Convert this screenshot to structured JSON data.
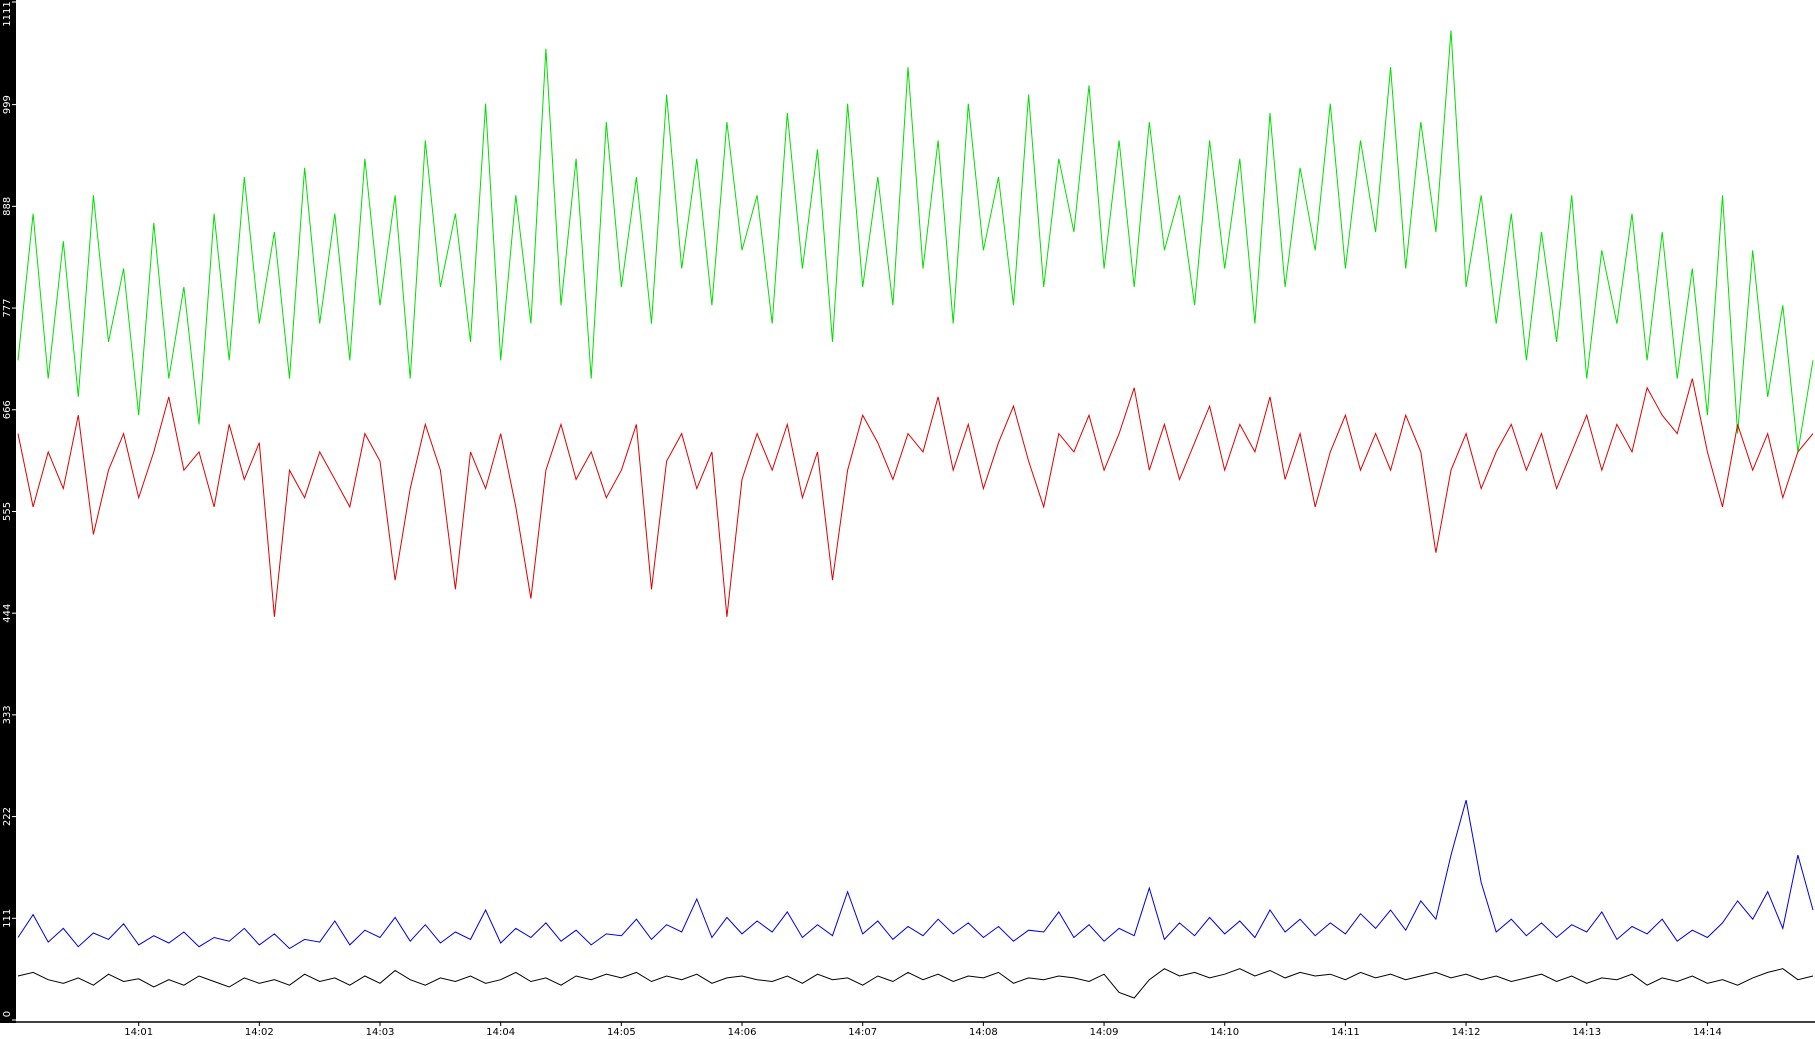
{
  "chart_data": {
    "type": "line",
    "categories": [
      null,
      null,
      null,
      null,
      null,
      null,
      null,
      null,
      "14:01",
      null,
      null,
      null,
      null,
      null,
      null,
      null,
      "14:02",
      null,
      null,
      null,
      null,
      null,
      null,
      null,
      "14:03",
      null,
      null,
      null,
      null,
      null,
      null,
      null,
      "14:04",
      null,
      null,
      null,
      null,
      null,
      null,
      null,
      "14:05",
      null,
      null,
      null,
      null,
      null,
      null,
      null,
      "14:06",
      null,
      null,
      null,
      null,
      null,
      null,
      null,
      "14:07",
      null,
      null,
      null,
      null,
      null,
      null,
      null,
      "14:08",
      null,
      null,
      null,
      null,
      null,
      null,
      null,
      "14:09",
      null,
      null,
      null,
      null,
      null,
      null,
      null,
      "14:10",
      null,
      null,
      null,
      null,
      null,
      null,
      null,
      "14:11",
      null,
      null,
      null,
      null,
      null,
      null,
      null,
      "14:12",
      null,
      null,
      null,
      null,
      null,
      null,
      null,
      "14:13",
      null,
      null,
      null,
      null,
      null,
      null,
      null,
      "14:14",
      null,
      null,
      null,
      null,
      null,
      null,
      null
    ],
    "series": [
      {
        "color": "#00e000",
        "values": [
          720,
          880,
          700,
          850,
          680,
          900,
          740,
          820,
          660,
          870,
          700,
          800,
          650,
          880,
          720,
          920,
          760,
          860,
          700,
          930,
          760,
          880,
          720,
          940,
          780,
          900,
          700,
          960,
          800,
          880,
          740,
          1000,
          720,
          900,
          760,
          1060,
          780,
          940,
          700,
          980,
          800,
          920,
          760,
          1010,
          820,
          940,
          780,
          980,
          840,
          900,
          760,
          990,
          820,
          950,
          740,
          1000,
          800,
          920,
          780,
          1040,
          820,
          960,
          760,
          1000,
          840,
          920,
          780,
          1010,
          800,
          940,
          860,
          1020,
          820,
          960,
          800,
          980,
          840,
          900,
          780,
          960,
          820,
          940,
          760,
          990,
          800,
          930,
          840,
          1000,
          820,
          960,
          860,
          1040,
          820,
          980,
          860,
          1080,
          800,
          900,
          760,
          880,
          720,
          860,
          740,
          900,
          700,
          840,
          760,
          880,
          720,
          860,
          700,
          820,
          660,
          900,
          640,
          840,
          680,
          780,
          620,
          720
        ]
      },
      {
        "color": "#e00000",
        "values": [
          640,
          560,
          620,
          580,
          660,
          530,
          600,
          640,
          570,
          620,
          680,
          600,
          620,
          560,
          650,
          590,
          630,
          440,
          600,
          570,
          620,
          590,
          560,
          640,
          610,
          480,
          580,
          650,
          600,
          470,
          620,
          580,
          640,
          560,
          460,
          600,
          650,
          590,
          620,
          570,
          600,
          650,
          470,
          610,
          640,
          580,
          620,
          440,
          590,
          640,
          600,
          650,
          570,
          620,
          480,
          600,
          660,
          630,
          590,
          640,
          620,
          680,
          600,
          650,
          580,
          630,
          670,
          610,
          560,
          640,
          620,
          660,
          600,
          640,
          690,
          600,
          650,
          590,
          630,
          670,
          600,
          650,
          620,
          680,
          590,
          640,
          560,
          620,
          660,
          600,
          640,
          600,
          660,
          620,
          510,
          600,
          640,
          580,
          620,
          650,
          600,
          640,
          580,
          620,
          660,
          600,
          650,
          620,
          690,
          660,
          640,
          700,
          620,
          560,
          650,
          600,
          640,
          570,
          620,
          640
        ]
      },
      {
        "color": "#0000e0",
        "values": [
          90,
          115,
          85,
          100,
          80,
          95,
          88,
          105,
          82,
          92,
          84,
          96,
          80,
          90,
          86,
          100,
          82,
          94,
          78,
          88,
          85,
          108,
          82,
          98,
          90,
          112,
          86,
          104,
          84,
          96,
          88,
          120,
          84,
          100,
          90,
          106,
          86,
          98,
          82,
          94,
          92,
          110,
          88,
          104,
          96,
          132,
          90,
          112,
          94,
          108,
          96,
          118,
          90,
          104,
          92,
          140,
          94,
          108,
          88,
          102,
          92,
          110,
          94,
          106,
          90,
          102,
          86,
          98,
          96,
          118,
          90,
          104,
          86,
          100,
          92,
          144,
          88,
          106,
          92,
          112,
          94,
          108,
          90,
          120,
          96,
          110,
          92,
          106,
          94,
          116,
          100,
          120,
          98,
          130,
          110,
          180,
          240,
          150,
          96,
          110,
          92,
          106,
          90,
          104,
          96,
          118,
          88,
          102,
          94,
          110,
          86,
          98,
          90,
          106,
          130,
          110,
          140,
          100,
          180,
          120
        ]
      },
      {
        "color": "#000000",
        "values": [
          48,
          52,
          44,
          40,
          46,
          38,
          50,
          42,
          45,
          36,
          44,
          38,
          48,
          42,
          36,
          46,
          40,
          44,
          38,
          50,
          42,
          46,
          38,
          48,
          40,
          54,
          44,
          38,
          46,
          42,
          48,
          40,
          44,
          52,
          42,
          46,
          38,
          48,
          44,
          50,
          46,
          52,
          42,
          48,
          44,
          50,
          40,
          46,
          48,
          44,
          42,
          48,
          40,
          50,
          44,
          46,
          38,
          48,
          42,
          52,
          44,
          50,
          42,
          48,
          46,
          52,
          40,
          46,
          44,
          48,
          46,
          42,
          50,
          30,
          24,
          44,
          56,
          48,
          52,
          46,
          50,
          56,
          48,
          54,
          46,
          52,
          48,
          50,
          44,
          52,
          46,
          50,
          44,
          48,
          52,
          46,
          50,
          44,
          48,
          42,
          46,
          50,
          42,
          48,
          40,
          46,
          44,
          50,
          38,
          46,
          42,
          48,
          40,
          44,
          38,
          46,
          52,
          56,
          44,
          48
        ]
      }
    ],
    "ylim": [
      0,
      1111
    ],
    "yticks": [
      0,
      111,
      222,
      333,
      444,
      555,
      666,
      777,
      888,
      999,
      1111
    ]
  }
}
